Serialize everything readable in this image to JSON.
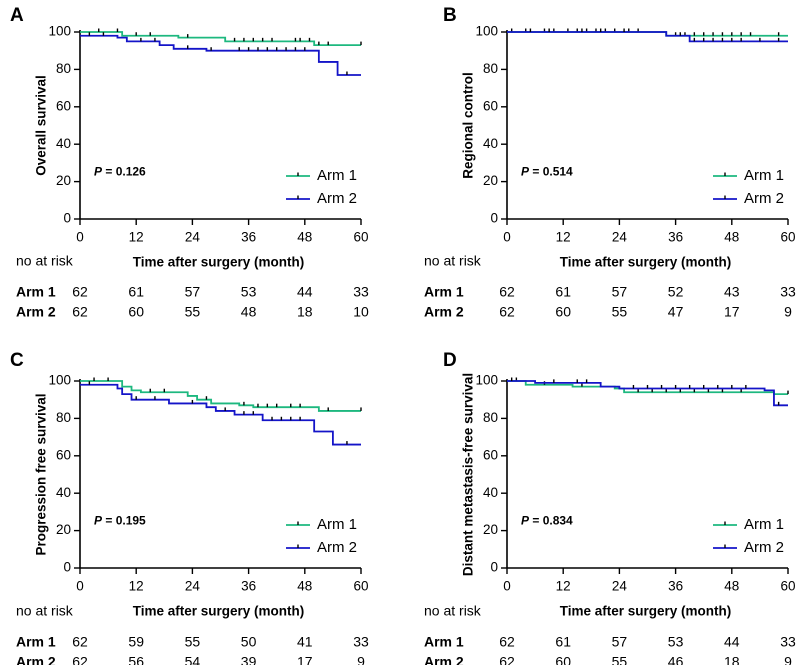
{
  "colors": {
    "arm1": "#1db87f",
    "arm2": "#1414c8",
    "axis": "#000000"
  },
  "chart_data": [
    {
      "type": "line",
      "panel": "A",
      "ylabel": "Overall survival",
      "xlabel": "Time after surgery (month)",
      "xlim": [
        0,
        60
      ],
      "ylim": [
        0,
        100
      ],
      "xticks": [
        "0",
        "12",
        "24",
        "36",
        "48",
        "60"
      ],
      "yticks": [
        "0",
        "20",
        "40",
        "60",
        "80",
        "100"
      ],
      "p_label": "P",
      "p_value": " = 0.126",
      "legend": [
        "Arm 1",
        "Arm 2"
      ],
      "legend_position": "center-right",
      "series": [
        {
          "name": "Arm 1",
          "steps": [
            [
              0,
              100
            ],
            [
              9,
              98
            ],
            [
              21,
              97
            ],
            [
              31,
              95
            ],
            [
              50,
              93
            ],
            [
              60,
              93
            ]
          ],
          "censors": [
            [
              4,
              100
            ],
            [
              8,
              100
            ],
            [
              12,
              98
            ],
            [
              15,
              98
            ],
            [
              23,
              97
            ],
            [
              33,
              95
            ],
            [
              35,
              95
            ],
            [
              37,
              95
            ],
            [
              39,
              95
            ],
            [
              41,
              95
            ],
            [
              46,
              95
            ],
            [
              47,
              95
            ],
            [
              49,
              95
            ],
            [
              51,
              93
            ],
            [
              53,
              93
            ],
            [
              60,
              93
            ]
          ]
        },
        {
          "name": "Arm 2",
          "steps": [
            [
              0,
              98
            ],
            [
              8,
              97
            ],
            [
              10,
              95
            ],
            [
              17,
              93
            ],
            [
              20,
              91
            ],
            [
              27,
              90
            ],
            [
              51,
              84
            ],
            [
              55,
              77
            ],
            [
              60,
              77
            ]
          ],
          "censors": [
            [
              2,
              98
            ],
            [
              5,
              98
            ],
            [
              13,
              95
            ],
            [
              16,
              95
            ],
            [
              23,
              91
            ],
            [
              28,
              90
            ],
            [
              34,
              90
            ],
            [
              36,
              90
            ],
            [
              38,
              90
            ],
            [
              40,
              90
            ],
            [
              42,
              90
            ],
            [
              44,
              90
            ],
            [
              46,
              90
            ],
            [
              48,
              90
            ],
            [
              57,
              77
            ]
          ]
        }
      ],
      "at_risk": {
        "label": "no at risk",
        "rows": [
          {
            "name": "Arm 1",
            "values": [
              "62",
              "61",
              "57",
              "53",
              "44",
              "33"
            ]
          },
          {
            "name": "Arm 2",
            "values": [
              "62",
              "60",
              "55",
              "48",
              "18",
              "10"
            ]
          }
        ]
      }
    },
    {
      "type": "line",
      "panel": "B",
      "ylabel": "Regional control",
      "xlabel": "Time after surgery (month)",
      "xlim": [
        0,
        60
      ],
      "ylim": [
        0,
        100
      ],
      "xticks": [
        "0",
        "12",
        "24",
        "36",
        "48",
        "60"
      ],
      "yticks": [
        "0",
        "20",
        "40",
        "60",
        "80",
        "100"
      ],
      "p_label": "P",
      "p_value": " = 0.514",
      "legend": [
        "Arm 1",
        "Arm 2"
      ],
      "legend_position": "center-right",
      "series": [
        {
          "name": "Arm 1",
          "steps": [
            [
              0,
              100
            ],
            [
              34,
              98
            ],
            [
              60,
              98
            ]
          ],
          "censors": [
            [
              1,
              100
            ],
            [
              4,
              100
            ],
            [
              8,
              100
            ],
            [
              10,
              100
            ],
            [
              13,
              100
            ],
            [
              15,
              100
            ],
            [
              17,
              100
            ],
            [
              19,
              100
            ],
            [
              21,
              100
            ],
            [
              23,
              100
            ],
            [
              26,
              100
            ],
            [
              28,
              100
            ],
            [
              36,
              98
            ],
            [
              38,
              98
            ],
            [
              40,
              98
            ],
            [
              42,
              98
            ],
            [
              44,
              98
            ],
            [
              46,
              98
            ],
            [
              48,
              98
            ],
            [
              50,
              98
            ],
            [
              52,
              98
            ],
            [
              58,
              98
            ]
          ]
        },
        {
          "name": "Arm 2",
          "steps": [
            [
              0,
              100
            ],
            [
              34,
              98
            ],
            [
              39,
              95
            ],
            [
              60,
              95
            ]
          ],
          "censors": [
            [
              5,
              100
            ],
            [
              9,
              100
            ],
            [
              16,
              100
            ],
            [
              20,
              100
            ],
            [
              25,
              100
            ],
            [
              37,
              98
            ],
            [
              40,
              95
            ],
            [
              42,
              95
            ],
            [
              44,
              95
            ],
            [
              46,
              95
            ],
            [
              48,
              95
            ],
            [
              50,
              95
            ],
            [
              54,
              95
            ],
            [
              58,
              95
            ]
          ]
        }
      ],
      "at_risk": {
        "label": "no at risk",
        "rows": [
          {
            "name": "Arm 1",
            "values": [
              "62",
              "61",
              "57",
              "52",
              "43",
              "33"
            ]
          },
          {
            "name": "Arm 2",
            "values": [
              "62",
              "60",
              "55",
              "47",
              "17",
              "9"
            ]
          }
        ]
      }
    },
    {
      "type": "line",
      "panel": "C",
      "ylabel": "Progression free survival",
      "xlabel": "Time after surgery (month)",
      "xlim": [
        0,
        60
      ],
      "ylim": [
        0,
        100
      ],
      "xticks": [
        "0",
        "12",
        "24",
        "36",
        "48",
        "60"
      ],
      "yticks": [
        "0",
        "20",
        "40",
        "60",
        "80",
        "100"
      ],
      "p_label": "P",
      "p_value": " = 0.195",
      "legend": [
        "Arm 1",
        "Arm 2"
      ],
      "legend_position": "center-right",
      "series": [
        {
          "name": "Arm 1",
          "steps": [
            [
              0,
              100
            ],
            [
              9,
              97
            ],
            [
              11,
              95
            ],
            [
              13,
              94
            ],
            [
              23,
              92
            ],
            [
              25,
              90
            ],
            [
              28,
              88
            ],
            [
              34,
              87
            ],
            [
              37,
              86
            ],
            [
              51,
              84
            ],
            [
              60,
              84
            ]
          ],
          "censors": [
            [
              3,
              100
            ],
            [
              6,
              100
            ],
            [
              15,
              94
            ],
            [
              18,
              94
            ],
            [
              27,
              90
            ],
            [
              35,
              87
            ],
            [
              38,
              86
            ],
            [
              40,
              86
            ],
            [
              42,
              86
            ],
            [
              45,
              86
            ],
            [
              47,
              86
            ],
            [
              53,
              84
            ],
            [
              60,
              84
            ]
          ]
        },
        {
          "name": "Arm 2",
          "steps": [
            [
              0,
              98
            ],
            [
              6,
              98
            ],
            [
              8,
              96
            ],
            [
              9,
              93
            ],
            [
              11,
              90
            ],
            [
              19,
              88
            ],
            [
              27,
              86
            ],
            [
              29,
              84
            ],
            [
              33,
              82
            ],
            [
              39,
              79
            ],
            [
              50,
              73
            ],
            [
              54,
              66
            ],
            [
              60,
              66
            ]
          ],
          "censors": [
            [
              2,
              98
            ],
            [
              12,
              90
            ],
            [
              16,
              90
            ],
            [
              24,
              88
            ],
            [
              31,
              84
            ],
            [
              35,
              82
            ],
            [
              37,
              82
            ],
            [
              41,
              79
            ],
            [
              43,
              79
            ],
            [
              45,
              79
            ],
            [
              47,
              79
            ],
            [
              57,
              66
            ]
          ]
        }
      ],
      "at_risk": {
        "label": "no at risk",
        "rows": [
          {
            "name": "Arm 1",
            "values": [
              "62",
              "59",
              "55",
              "50",
              "41",
              "33"
            ]
          },
          {
            "name": "Arm 2",
            "values": [
              "62",
              "56",
              "54",
              "39",
              "17",
              "9"
            ]
          }
        ]
      }
    },
    {
      "type": "line",
      "panel": "D",
      "ylabel": "Distant metastasis-free survival",
      "xlabel": "Time after surgery (month)",
      "xlim": [
        0,
        60
      ],
      "ylim": [
        0,
        100
      ],
      "xticks": [
        "0",
        "12",
        "24",
        "36",
        "48",
        "60"
      ],
      "yticks": [
        "0",
        "20",
        "40",
        "60",
        "80",
        "100"
      ],
      "p_label": "P",
      "p_value": " = 0.834",
      "legend": [
        "Arm 1",
        "Arm 2"
      ],
      "legend_position": "center-right",
      "series": [
        {
          "name": "Arm 1",
          "steps": [
            [
              0,
              100
            ],
            [
              4,
              98
            ],
            [
              14,
              97
            ],
            [
              23,
              96
            ],
            [
              25,
              94
            ],
            [
              56,
              94
            ],
            [
              57,
              93
            ],
            [
              60,
              93
            ]
          ],
          "censors": [
            [
              2,
              100
            ],
            [
              8,
              98
            ],
            [
              16,
              97
            ],
            [
              28,
              94
            ],
            [
              31,
              94
            ],
            [
              34,
              94
            ],
            [
              37,
              94
            ],
            [
              40,
              94
            ],
            [
              43,
              94
            ],
            [
              46,
              94
            ],
            [
              50,
              94
            ],
            [
              60,
              93
            ]
          ]
        },
        {
          "name": "Arm 2",
          "steps": [
            [
              0,
              100
            ],
            [
              6,
              99
            ],
            [
              20,
              97
            ],
            [
              24,
              96
            ],
            [
              55,
              95
            ],
            [
              57,
              87
            ],
            [
              60,
              87
            ]
          ],
          "censors": [
            [
              1,
              100
            ],
            [
              10,
              99
            ],
            [
              15,
              99
            ],
            [
              17,
              99
            ],
            [
              27,
              96
            ],
            [
              30,
              96
            ],
            [
              33,
              96
            ],
            [
              36,
              96
            ],
            [
              39,
              96
            ],
            [
              42,
              96
            ],
            [
              45,
              96
            ],
            [
              48,
              96
            ],
            [
              51,
              96
            ],
            [
              58,
              87
            ]
          ]
        }
      ],
      "at_risk": {
        "label": "no at risk",
        "rows": [
          {
            "name": "Arm 1",
            "values": [
              "62",
              "61",
              "57",
              "53",
              "44",
              "33"
            ]
          },
          {
            "name": "Arm 2",
            "values": [
              "62",
              "60",
              "55",
              "46",
              "18",
              "9"
            ]
          }
        ]
      }
    }
  ]
}
